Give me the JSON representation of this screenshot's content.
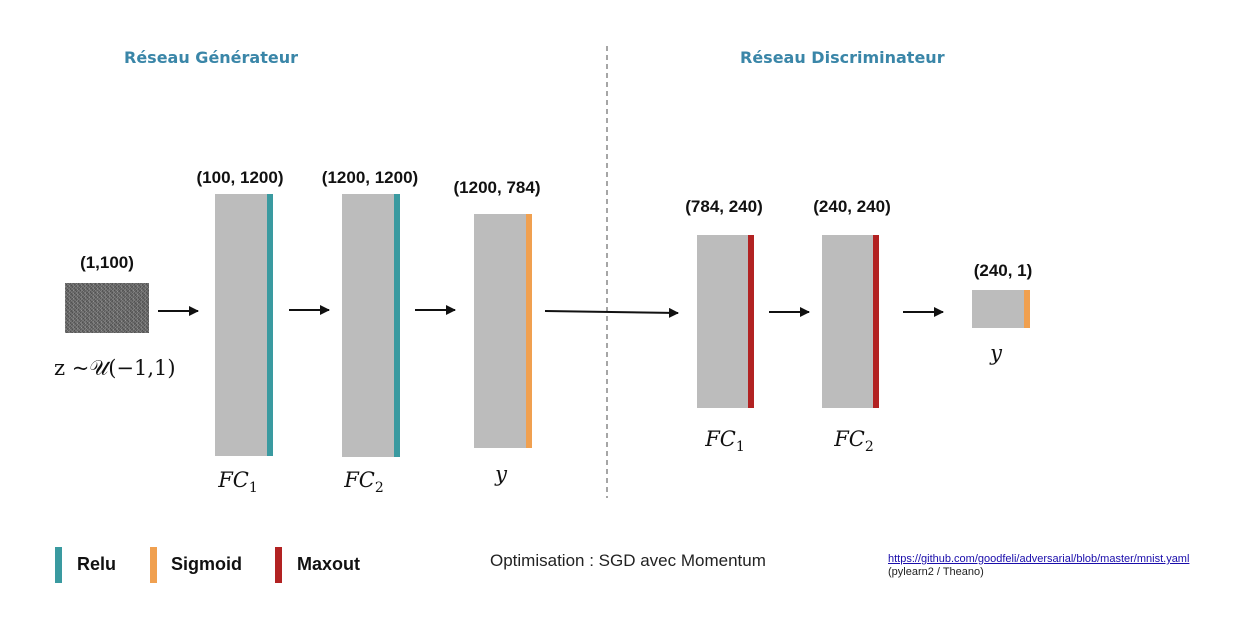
{
  "generator": {
    "title": "Réseau Générateur",
    "input": {
      "dims": "(1,100)",
      "distribution": "z ~𝒰(−1,1)"
    },
    "layers": [
      {
        "dims": "(100, 1200)",
        "name": "FC",
        "sub": "1",
        "activation": "relu"
      },
      {
        "dims": "(1200, 1200)",
        "name": "FC",
        "sub": "2",
        "activation": "relu"
      },
      {
        "dims": "(1200, 784)",
        "name": "y",
        "sub": "",
        "activation": "sigmoid"
      }
    ]
  },
  "discriminator": {
    "title": "Réseau Discriminateur",
    "layers": [
      {
        "dims": "(784, 240)",
        "name": "FC",
        "sub": "1",
        "activation": "maxout"
      },
      {
        "dims": "(240, 240)",
        "name": "FC",
        "sub": "2",
        "activation": "maxout"
      },
      {
        "dims": "(240, 1)",
        "name": "y",
        "sub": "",
        "activation": "sigmoid"
      }
    ]
  },
  "legend": {
    "relu": {
      "label": "Relu",
      "color": "#3a9aa0"
    },
    "sigmoid": {
      "label": "Sigmoid",
      "color": "#f0a050"
    },
    "maxout": {
      "label": "Maxout",
      "color": "#b22222"
    }
  },
  "optimisation": "Optimisation : SGD avec Momentum",
  "reference": {
    "url": "https://github.com/goodfeli/adversarial/blob/master/mnist.yaml",
    "note": "(pylearn2 / Theano)"
  }
}
